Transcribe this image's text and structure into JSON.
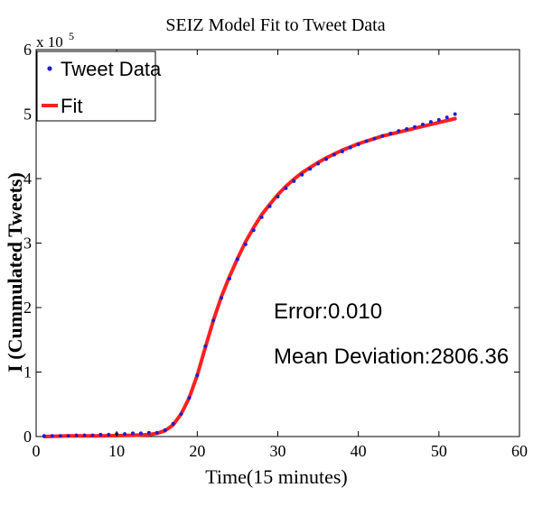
{
  "chart_data": {
    "type": "line",
    "title": "SEIZ Model Fit to Tweet Data",
    "xlabel": "Time(15 minutes)",
    "ylabel": "I (Cummulated Tweets)",
    "xlim": [
      0,
      60
    ],
    "ylim": [
      0,
      6
    ],
    "y_scale_label": "x 10",
    "y_scale_exponent": "5",
    "xticks": [
      0,
      10,
      20,
      30,
      40,
      50,
      60
    ],
    "yticks": [
      0,
      1,
      2,
      3,
      4,
      5,
      6
    ],
    "grid": false,
    "legend_position": "top-left",
    "series": [
      {
        "name": "Tweet Data",
        "style": "dots",
        "color": "#1f1fcc",
        "x": [
          1,
          2,
          3,
          4,
          5,
          6,
          7,
          8,
          9,
          10,
          11,
          12,
          13,
          14,
          15,
          16,
          17,
          18,
          19,
          20,
          21,
          22,
          23,
          24,
          25,
          26,
          27,
          28,
          29,
          30,
          31,
          32,
          33,
          34,
          35,
          36,
          37,
          38,
          39,
          40,
          41,
          42,
          43,
          44,
          45,
          46,
          47,
          48,
          49,
          50,
          51,
          52
        ],
        "y": [
          0.01,
          0.01,
          0.01,
          0.01,
          0.02,
          0.02,
          0.02,
          0.03,
          0.03,
          0.04,
          0.04,
          0.05,
          0.05,
          0.06,
          0.06,
          0.1,
          0.2,
          0.35,
          0.6,
          0.95,
          1.4,
          1.8,
          2.15,
          2.45,
          2.75,
          2.98,
          3.2,
          3.4,
          3.57,
          3.72,
          3.85,
          3.96,
          4.06,
          4.15,
          4.23,
          4.3,
          4.37,
          4.42,
          4.48,
          4.53,
          4.58,
          4.62,
          4.66,
          4.7,
          4.74,
          4.77,
          4.8,
          4.84,
          4.88,
          4.91,
          4.95,
          5.0
        ]
      },
      {
        "name": "Fit",
        "style": "line",
        "color": "#ff2020",
        "x": [
          1,
          4,
          8,
          12,
          14,
          15,
          16,
          17,
          18,
          19,
          20,
          21,
          22,
          23,
          24,
          25,
          26,
          27,
          28,
          29,
          30,
          31,
          32,
          33,
          34,
          35,
          36,
          37,
          38,
          39,
          40,
          41,
          42,
          43,
          44,
          45,
          46,
          47,
          48,
          49,
          50,
          51,
          52
        ],
        "y": [
          0,
          0.01,
          0.01,
          0.02,
          0.03,
          0.05,
          0.09,
          0.18,
          0.35,
          0.6,
          0.95,
          1.38,
          1.8,
          2.17,
          2.48,
          2.76,
          3.02,
          3.24,
          3.44,
          3.6,
          3.75,
          3.88,
          3.99,
          4.09,
          4.17,
          4.25,
          4.32,
          4.38,
          4.44,
          4.49,
          4.54,
          4.58,
          4.62,
          4.66,
          4.69,
          4.72,
          4.75,
          4.78,
          4.81,
          4.84,
          4.87,
          4.9,
          4.93
        ]
      }
    ],
    "annotations": [
      {
        "text": "Error:0.010",
        "x": 29.5,
        "y": 1.83
      },
      {
        "text": "Mean Deviation:2806.36",
        "x": 29.5,
        "y": 1.13
      }
    ]
  }
}
